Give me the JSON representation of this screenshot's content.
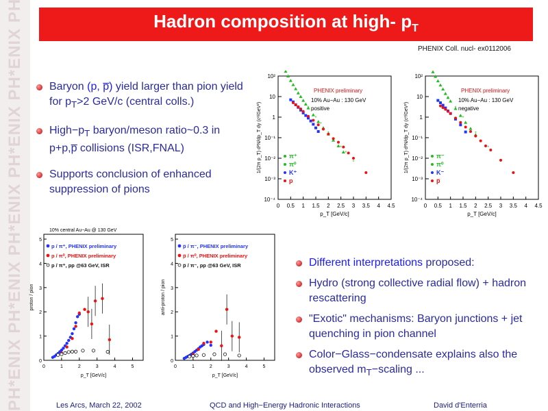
{
  "sidebar": {
    "watermark": "PH*ENIX PH*ENIX PH*ENIX PH*ENIX PH*ENIX PH*ENIX PH*ENIX PH*ENIX"
  },
  "title": {
    "text": "Hadron composition at high- p",
    "sub": "T"
  },
  "credit": "PHENIX Coll. nucl- ex0112006",
  "bullets_left": [
    {
      "p1_red": "Baryon ",
      "p2_blue": "(p, p̅)",
      "p3_red": " yield larger than pion yield for p",
      "sub": "T",
      "p4_red": ">2 GeV/c (central colls.)"
    },
    {
      "p1_red": "High−p",
      "sub": "T",
      "p2_red": " baryon/meson ratio~0.3 in p+p,p̅ collisions (ISR,FNAL)"
    },
    {
      "p1_red": "Supports conclusion of enhanced suppression of pions"
    }
  ],
  "bullets_right": [
    {
      "blue": "Different interpretations",
      "red": " proposed:"
    },
    {
      "red": "Hydro (strong collective radial flow) + hadron rescattering"
    },
    {
      "red": "\"Exotic\" mechanisms: Baryon junctions + jet quenching in pion channel"
    },
    {
      "red": "Color−Glass−condensate explains also the observed m",
      "sub": "T",
      "red2": "−scaling ..."
    }
  ],
  "footer": {
    "left": "Les Arcs, March 22, 2002",
    "center": "QCD and High−Energy Hadronic Interactions",
    "right": "David d'Enterria"
  },
  "colors": {
    "accent_red": "#ee1a1a",
    "text_red": "#cc1010",
    "text_blue": "#1a1aff"
  },
  "chart_data": [
    {
      "type": "scatter",
      "log_y": true,
      "ylabel": "1/(2π p_T) d²N/dp_T dy (c²/GeV²)",
      "xlabel": "p_T [GeV/c]",
      "legend_header": [
        "PHENIX preliminary",
        "10% Au−Au : 130 GeV",
        "positive"
      ],
      "x_ticks": [
        "0",
        "0.5",
        "1",
        "1.5",
        "2",
        "2.5",
        "3",
        "3.5",
        "4",
        "4.5"
      ],
      "y_ticks": [
        "10²",
        "10",
        "1",
        "10⁻¹",
        "10⁻²",
        "10⁻³",
        "10⁻⁴"
      ],
      "legend": [
        "π⁺",
        "π⁰",
        "K⁺",
        "p"
      ],
      "series": [
        {
          "name": "π⁺",
          "color": "#22bb22",
          "points": [
            [
              0.3,
              170
            ],
            [
              0.4,
              100
            ],
            [
              0.5,
              60
            ],
            [
              0.6,
              38
            ],
            [
              0.7,
              24
            ],
            [
              0.8,
              15
            ],
            [
              0.9,
              10
            ],
            [
              1.0,
              6.5
            ],
            [
              1.1,
              4.3
            ],
            [
              1.2,
              2.8
            ],
            [
              1.4,
              1.3
            ],
            [
              1.6,
              0.6
            ],
            [
              1.8,
              0.3
            ],
            [
              2.0,
              0.15
            ],
            [
              2.2,
              0.075
            ],
            [
              2.4,
              0.04
            ],
            [
              2.6,
              0.02
            ]
          ]
        },
        {
          "name": "π⁰",
          "color": "#22bb22",
          "points": [
            [
              1.2,
              3
            ],
            [
              1.5,
              1
            ],
            [
              1.7,
              0.5
            ],
            [
              2.0,
              0.18
            ],
            [
              2.2,
              0.09
            ],
            [
              2.5,
              0.035
            ],
            [
              2.7,
              0.02
            ],
            [
              3.0,
              0.007
            ],
            [
              3.5,
              0.002
            ]
          ]
        },
        {
          "name": "K⁺",
          "color": "#2233ff",
          "points": [
            [
              0.5,
              7
            ],
            [
              0.6,
              5.5
            ],
            [
              0.7,
              4
            ],
            [
              0.8,
              3
            ],
            [
              0.9,
              2.2
            ],
            [
              1.0,
              1.6
            ],
            [
              1.1,
              1.2
            ],
            [
              1.2,
              0.9
            ],
            [
              1.3,
              0.65
            ],
            [
              1.4,
              0.45
            ],
            [
              1.5,
              0.3
            ],
            [
              1.6,
              0.2
            ]
          ]
        },
        {
          "name": "p",
          "color": "#ee1111",
          "points": [
            [
              0.6,
              5
            ],
            [
              0.7,
              4
            ],
            [
              0.8,
              3.2
            ],
            [
              0.9,
              2.5
            ],
            [
              1.0,
              1.9
            ],
            [
              1.2,
              1.1
            ],
            [
              1.4,
              0.7
            ],
            [
              1.6,
              0.42
            ],
            [
              1.8,
              0.26
            ],
            [
              2.0,
              0.15
            ],
            [
              2.2,
              0.09
            ],
            [
              2.4,
              0.06
            ],
            [
              2.6,
              0.035
            ],
            [
              2.8,
              0.018
            ],
            [
              3.0,
              0.01
            ],
            [
              3.5,
              0.002
            ]
          ]
        }
      ]
    },
    {
      "type": "scatter",
      "log_y": true,
      "ylabel": "1/(2π p_T) d²N/dp_T dy (c²/GeV²)",
      "xlabel": "p_T [GeV/c]",
      "legend_header": [
        "PHENIX preliminary",
        "10% Au−Au : 130 GeV",
        "negative"
      ],
      "x_ticks": [
        "0",
        "0.5",
        "1",
        "1.5",
        "2",
        "2.5",
        "3",
        "3.5",
        "4",
        "4.5"
      ],
      "y_ticks": [
        "10²",
        "10",
        "1",
        "10⁻¹",
        "10⁻²",
        "10⁻³",
        "10⁻⁴"
      ],
      "legend": [
        "π⁻",
        "π⁰",
        "K⁻",
        "p̅"
      ],
      "series": [
        {
          "name": "π⁻",
          "color": "#22bb22",
          "points": [
            [
              0.3,
              160
            ],
            [
              0.4,
              95
            ],
            [
              0.5,
              58
            ],
            [
              0.6,
              36
            ],
            [
              0.7,
              23
            ],
            [
              0.8,
              14
            ],
            [
              0.9,
              9
            ],
            [
              1.0,
              6
            ],
            [
              1.2,
              2.6
            ],
            [
              1.4,
              1.2
            ],
            [
              1.6,
              0.55
            ],
            [
              1.8,
              0.28
            ],
            [
              2.0,
              0.14
            ]
          ]
        },
        {
          "name": "π⁰",
          "color": "#22bb22",
          "points": [
            [
              1.2,
              3
            ],
            [
              1.5,
              1
            ],
            [
              2.0,
              0.18
            ],
            [
              2.5,
              0.035
            ],
            [
              3.0,
              0.007
            ],
            [
              3.5,
              0.002
            ]
          ]
        },
        {
          "name": "K⁻",
          "color": "#2233ff",
          "points": [
            [
              0.5,
              6.5
            ],
            [
              0.6,
              5
            ],
            [
              0.7,
              3.8
            ],
            [
              0.8,
              2.8
            ],
            [
              0.9,
              2
            ],
            [
              1.0,
              1.5
            ],
            [
              1.2,
              0.8
            ],
            [
              1.4,
              0.42
            ],
            [
              1.6,
              0.19
            ]
          ]
        },
        {
          "name": "p̅",
          "color": "#ee1111",
          "points": [
            [
              0.6,
              3.5
            ],
            [
              0.7,
              2.9
            ],
            [
              0.8,
              2.4
            ],
            [
              0.9,
              1.9
            ],
            [
              1.0,
              1.5
            ],
            [
              1.2,
              0.9
            ],
            [
              1.4,
              0.55
            ],
            [
              1.6,
              0.33
            ],
            [
              1.8,
              0.2
            ],
            [
              2.0,
              0.12
            ],
            [
              2.2,
              0.07
            ],
            [
              2.4,
              0.04
            ],
            [
              2.6,
              0.025
            ],
            [
              3.0,
              0.008
            ],
            [
              3.5,
              0.002
            ]
          ]
        }
      ]
    },
    {
      "type": "scatter",
      "header": "10% central Au−Au @ 130 GeV",
      "ylabel": "proton / pion",
      "xlabel": "p_T [GeV/c]",
      "x_ticks": [
        "0",
        "1",
        "2",
        "3",
        "4",
        "5"
      ],
      "y_ticks": [
        "0",
        "1",
        "2",
        "3",
        "4",
        "5"
      ],
      "xlim": [
        0,
        5.6
      ],
      "ylim": [
        0,
        5.2
      ],
      "legend": [
        "p / π⁺, PHENIX preliminary",
        "p / π⁰, PHENIX preliminary",
        "p / π⁺, pp @63 GeV, ISR"
      ],
      "series": [
        {
          "name": "p / π⁺, PHENIX preliminary",
          "color": "#2233ff",
          "points": [
            [
              0.5,
              0.12
            ],
            [
              0.6,
              0.16
            ],
            [
              0.7,
              0.22
            ],
            [
              0.8,
              0.28
            ],
            [
              0.9,
              0.35
            ],
            [
              1.0,
              0.42
            ],
            [
              1.1,
              0.5
            ],
            [
              1.2,
              0.6
            ],
            [
              1.3,
              0.7
            ],
            [
              1.4,
              0.82
            ],
            [
              1.5,
              0.95
            ],
            [
              1.6,
              1.1
            ],
            [
              1.7,
              1.3
            ],
            [
              1.8,
              1.55
            ],
            [
              1.9,
              1.8
            ],
            [
              2.0,
              1.9
            ]
          ]
        },
        {
          "name": "p / π⁰, PHENIX preliminary",
          "color": "#ee1111",
          "points": [
            [
              1.0,
              0.3
            ],
            [
              1.3,
              0.55
            ],
            [
              1.6,
              0.9
            ],
            [
              1.8,
              1.4
            ],
            [
              2.0,
              1.95
            ],
            [
              2.3,
              2.1
            ],
            [
              2.5,
              2.0
            ],
            [
              2.7,
              1.5
            ],
            [
              2.9,
              2.45
            ],
            [
              3.3,
              2.55
            ],
            [
              3.7,
              0.85
            ]
          ]
        },
        {
          "name": "p / π⁺, pp @63 GeV, ISR",
          "color": "#111111",
          "open": true,
          "points": [
            [
              0.8,
              0.22
            ],
            [
              1.0,
              0.25
            ],
            [
              1.2,
              0.3
            ],
            [
              1.4,
              0.34
            ],
            [
              1.6,
              0.36
            ],
            [
              1.8,
              0.36
            ],
            [
              2.2,
              0.4
            ],
            [
              2.8,
              0.4
            ],
            [
              3.6,
              0.35
            ]
          ]
        }
      ]
    },
    {
      "type": "scatter",
      "ylabel": "anti-proton / pion",
      "xlabel": "p_T [GeV/c]",
      "x_ticks": [
        "0",
        "1",
        "2",
        "3",
        "4",
        "5"
      ],
      "y_ticks": [
        "0",
        "1",
        "2",
        "3",
        "4",
        "5"
      ],
      "xlim": [
        0,
        5.6
      ],
      "ylim": [
        0,
        5.2
      ],
      "legend": [
        "p̅ / π⁻, PHENIX preliminary",
        "p̅ / π⁰, PHENIX preliminary",
        "p̅ / π⁻, pp @63 GeV, ISR"
      ],
      "series": [
        {
          "name": "p̅ / π⁻, PHENIX preliminary",
          "color": "#2233ff",
          "points": [
            [
              0.5,
              0.08
            ],
            [
              0.6,
              0.12
            ],
            [
              0.7,
              0.16
            ],
            [
              0.8,
              0.2
            ],
            [
              0.9,
              0.25
            ],
            [
              1.0,
              0.3
            ],
            [
              1.1,
              0.36
            ],
            [
              1.2,
              0.42
            ],
            [
              1.3,
              0.48
            ],
            [
              1.4,
              0.55
            ],
            [
              1.5,
              0.6
            ],
            [
              1.6,
              0.65
            ],
            [
              1.8,
              0.75
            ],
            [
              2.0,
              0.62
            ]
          ]
        },
        {
          "name": "p̅ / π⁰, PHENIX preliminary",
          "color": "#ee1111",
          "points": [
            [
              1.0,
              0.25
            ],
            [
              1.3,
              0.45
            ],
            [
              1.6,
              0.7
            ],
            [
              2.0,
              0.75
            ],
            [
              2.3,
              1.2
            ],
            [
              2.6,
              0.6
            ],
            [
              2.9,
              2.1
            ],
            [
              3.2,
              1.0
            ],
            [
              3.6,
              0.95
            ]
          ]
        },
        {
          "name": "p̅ / π⁻, pp @63 GeV, ISR",
          "color": "#111111",
          "open": true,
          "points": [
            [
              0.8,
              0.15
            ],
            [
              1.0,
              0.18
            ],
            [
              1.2,
              0.2
            ],
            [
              1.6,
              0.22
            ],
            [
              2.2,
              0.25
            ],
            [
              2.8,
              0.25
            ],
            [
              3.6,
              0.2
            ]
          ]
        }
      ]
    }
  ]
}
